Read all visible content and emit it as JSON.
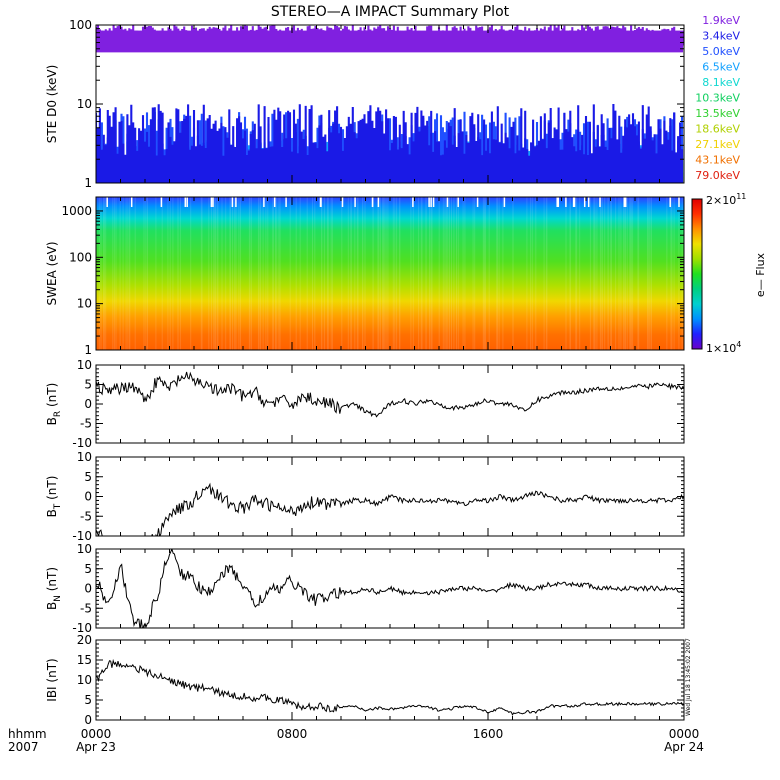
{
  "title": "STEREO—A IMPACT Summary Plot",
  "stamp": "Wed Jul 18 13:45:02 2007",
  "time_axis": {
    "label_line1": "hhmm",
    "label_line2": "2007",
    "ticks": [
      {
        "hour": 0,
        "line1": "0000",
        "line2": "Apr 23"
      },
      {
        "hour": 8,
        "line1": "0800",
        "line2": ""
      },
      {
        "hour": 16,
        "line1": "1600",
        "line2": ""
      },
      {
        "hour": 24,
        "line1": "0000",
        "line2": "Apr 24"
      }
    ]
  },
  "ste_legend": [
    {
      "label": "1.9keV",
      "color": "#8020e0"
    },
    {
      "label": "3.4keV",
      "color": "#1a1ae6"
    },
    {
      "label": "5.0keV",
      "color": "#2050ff"
    },
    {
      "label": "6.5keV",
      "color": "#10a0ff"
    },
    {
      "label": "8.1keV",
      "color": "#10d8d0"
    },
    {
      "label": "10.3keV",
      "color": "#10d060"
    },
    {
      "label": "13.5keV",
      "color": "#30d030"
    },
    {
      "label": "18.6keV",
      "color": "#b0d000"
    },
    {
      "label": "27.1keV",
      "color": "#f0d000"
    },
    {
      "label": "43.1keV",
      "color": "#f07000"
    },
    {
      "label": "79.0keV",
      "color": "#e02010"
    }
  ],
  "colorbar": {
    "label": "e— Flux",
    "max_base": "2×10",
    "max_exp": "11",
    "min_base": "1×10",
    "min_exp": "4",
    "colors": [
      "#6a00c8",
      "#2020ff",
      "#0090ff",
      "#00d0d0",
      "#00d080",
      "#20e020",
      "#a0e000",
      "#f0e000",
      "#ff9000",
      "#ff3000",
      "#e00000"
    ]
  },
  "chart_data": [
    {
      "type": "line",
      "title": "STE D0",
      "ylabel": "STE D0 (keV)",
      "yscale": "log",
      "ylim": [
        1,
        100
      ],
      "yticks": [
        1,
        10,
        100
      ],
      "xlim": [
        0,
        24
      ],
      "series": [
        {
          "name": "1.9keV",
          "band": [
            45,
            100
          ]
        },
        {
          "name": "3.4keV",
          "band": [
            2.2,
            10
          ]
        },
        {
          "name": "5.0keV",
          "band": [
            2.0,
            8
          ]
        },
        {
          "name": "6.5keV",
          "band": [
            2.0,
            3.5
          ]
        },
        {
          "name": "8.1keV",
          "band": [
            1.8,
            2.5
          ]
        },
        {
          "name": "10.3keV",
          "band": [
            1.5,
            2.0
          ]
        },
        {
          "name": "13.5keV",
          "band": [
            1.3,
            1.9
          ]
        },
        {
          "name": "18.6keV",
          "band": [
            1.2,
            1.8
          ]
        },
        {
          "name": "27.1keV",
          "band": [
            1.1,
            1.7
          ]
        },
        {
          "name": "43.1keV",
          "band": [
            1.0,
            1.6
          ]
        },
        {
          "name": "79.0keV",
          "band": [
            1.0,
            1.5
          ]
        }
      ]
    },
    {
      "type": "heatmap",
      "title": "SWEA",
      "ylabel": "SWEA (eV)",
      "yscale": "log",
      "ylim": [
        1,
        2000
      ],
      "yticks": [
        1,
        10,
        100,
        1000
      ],
      "xlim": [
        0,
        24
      ],
      "colorbar_range": [
        10000.0,
        200000000000.0
      ]
    },
    {
      "type": "line",
      "title": "BR",
      "ylabel": "B",
      "ylabel_sub": "R",
      "ylabel_unit": "(nT)",
      "ylim": [
        -10,
        10
      ],
      "yticks": [
        -10,
        -5,
        0,
        5,
        10
      ],
      "x": [
        0,
        0.5,
        1,
        1.5,
        2,
        2.5,
        3,
        3.5,
        4,
        4.5,
        5,
        5.5,
        6,
        6.5,
        7,
        7.5,
        8,
        8.5,
        9,
        9.5,
        10,
        10.5,
        11,
        11.5,
        12,
        12.5,
        13,
        13.5,
        14,
        14.5,
        15,
        15.5,
        16,
        16.5,
        17,
        17.5,
        18,
        18.5,
        19,
        19.5,
        20,
        20.5,
        21,
        21.5,
        22,
        22.5,
        23,
        23.5,
        24
      ],
      "y": [
        5,
        3,
        4,
        5,
        1,
        6,
        4,
        7,
        6,
        5,
        3,
        4,
        2,
        3,
        0,
        1,
        0,
        2,
        1,
        0,
        -1,
        0,
        -2,
        -3,
        0,
        1,
        0,
        1,
        0,
        -1,
        -1,
        0,
        1,
        0,
        0,
        -2,
        1,
        2,
        3,
        3,
        3.5,
        4,
        4,
        4,
        4.5,
        4.5,
        5,
        4.5,
        4
      ]
    },
    {
      "type": "line",
      "title": "BT",
      "ylabel": "B",
      "ylabel_sub": "T",
      "ylabel_unit": "(nT)",
      "ylim": [
        -10,
        10
      ],
      "yticks": [
        -10,
        -5,
        0,
        5,
        10
      ],
      "x": [
        0,
        0.5,
        1,
        1.5,
        2,
        2.5,
        3,
        3.5,
        4,
        4.5,
        5,
        5.5,
        6,
        6.5,
        7,
        7.5,
        8,
        8.5,
        9,
        9.5,
        10,
        10.5,
        11,
        11.5,
        12,
        12.5,
        13,
        13.5,
        14,
        14.5,
        15,
        15.5,
        16,
        16.5,
        17,
        17.5,
        18,
        18.5,
        19,
        19.5,
        20,
        20.5,
        21,
        21.5,
        22,
        22.5,
        23,
        23.5,
        24
      ],
      "y": [
        -8,
        -12,
        -12,
        -12,
        -12,
        -10,
        -4,
        -3,
        -1,
        3,
        0,
        -2,
        -3,
        -1,
        -2,
        -3,
        -4,
        -2,
        -1,
        -2,
        -2,
        -1,
        -1,
        -2,
        0,
        -1,
        -1,
        -1,
        -1,
        -1,
        -2,
        -1,
        -1,
        0,
        -1,
        0,
        1,
        0,
        -1,
        -1,
        0,
        -1,
        -1,
        -1,
        -1,
        -1,
        -1,
        -1,
        0
      ]
    },
    {
      "type": "line",
      "title": "BN",
      "ylabel": "B",
      "ylabel_sub": "N",
      "ylabel_unit": "(nT)",
      "ylim": [
        -10,
        10
      ],
      "yticks": [
        -10,
        -5,
        0,
        5,
        10
      ],
      "x": [
        0,
        0.5,
        1,
        1.5,
        2,
        2.5,
        3,
        3.5,
        4,
        4.5,
        5,
        5.5,
        6,
        6.5,
        7,
        7.5,
        8,
        8.5,
        9,
        9.5,
        10,
        10.5,
        11,
        11.5,
        12,
        12.5,
        13,
        13.5,
        14,
        14.5,
        15,
        15.5,
        16,
        16.5,
        17,
        17.5,
        18,
        18.5,
        19,
        19.5,
        20,
        20.5,
        21,
        21.5,
        22,
        22.5,
        23,
        23.5,
        24
      ],
      "y": [
        2,
        -4,
        6,
        -8,
        -10,
        -2,
        10,
        4,
        2,
        -2,
        3,
        5,
        1,
        -4,
        -1,
        0,
        2,
        -1,
        -3,
        -2,
        -1,
        -1,
        0,
        -1,
        0,
        -1,
        -1,
        -1,
        -1,
        0,
        0,
        0,
        -1,
        0,
        1,
        0,
        0,
        1,
        1,
        1,
        1,
        0,
        0,
        0,
        0,
        0,
        0,
        0,
        -1
      ]
    },
    {
      "type": "line",
      "title": "|B|",
      "ylabel": "IBI (nT)",
      "ylim": [
        0,
        20
      ],
      "yticks": [
        0,
        5,
        10,
        15,
        20
      ],
      "x": [
        0,
        0.5,
        1,
        1.5,
        2,
        2.5,
        3,
        3.5,
        4,
        4.5,
        5,
        5.5,
        6,
        6.5,
        7,
        7.5,
        8,
        8.5,
        9,
        9.5,
        10,
        10.5,
        11,
        11.5,
        12,
        12.5,
        13,
        13.5,
        14,
        14.5,
        15,
        15.5,
        16,
        16.5,
        17,
        17.5,
        18,
        18.5,
        19,
        19.5,
        20,
        20.5,
        21,
        21.5,
        22,
        22.5,
        23,
        23.5,
        24
      ],
      "y": [
        10,
        14,
        14,
        13.5,
        12,
        11,
        10,
        9,
        8,
        8,
        7,
        6,
        6,
        5.5,
        5.5,
        5,
        4,
        3,
        3.5,
        3,
        3,
        3.5,
        2.5,
        3,
        2.8,
        3,
        3.5,
        3.2,
        2.5,
        2.8,
        3.5,
        3,
        2,
        3,
        1.5,
        2,
        2,
        3.5,
        3.5,
        3.5,
        4,
        4,
        4,
        4,
        4,
        4,
        4,
        4.2,
        4
      ]
    }
  ]
}
